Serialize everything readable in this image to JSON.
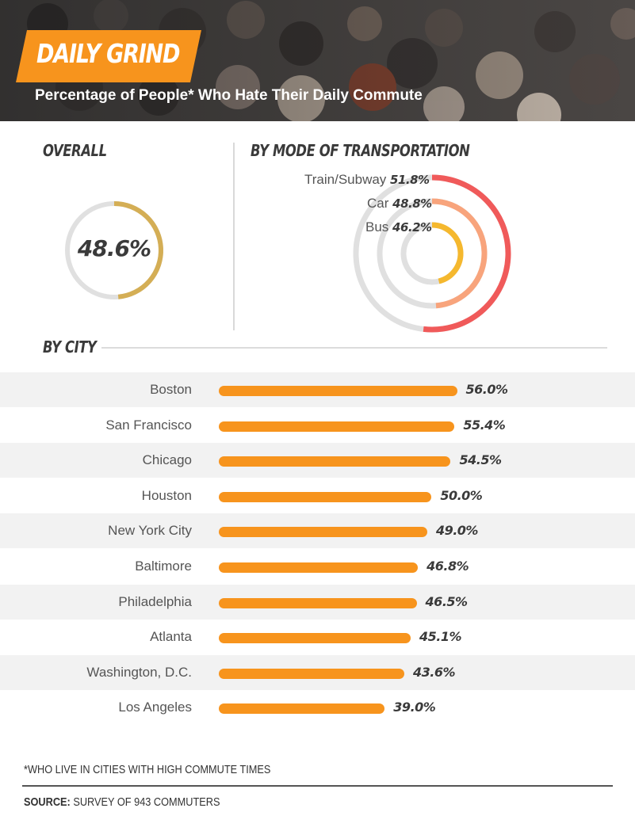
{
  "header": {
    "title": "DAILY GRIND",
    "subtitle": "Percentage of People* Who Hate Their Daily Commute"
  },
  "sections": {
    "overall": "OVERALL",
    "by_mode": "BY MODE OF TRANSPORTATION",
    "by_city": "BY CITY"
  },
  "colors": {
    "overall_ring": "#d4ae55",
    "train": "#f05a5a",
    "car": "#f8a47c",
    "bus": "#f5b82e",
    "track": "#e0e0e0",
    "bar": "#f7941d",
    "title_tag": "#f7941d"
  },
  "chart_data": [
    {
      "type": "pie",
      "title": "OVERALL",
      "values": [
        48.6
      ],
      "value_label": "48.6%",
      "max": 100
    },
    {
      "type": "bar",
      "title": "BY MODE OF TRANSPORTATION",
      "categories": [
        "Train/Subway",
        "Car",
        "Bus"
      ],
      "values": [
        51.8,
        48.8,
        46.2
      ],
      "labels": [
        "51.8%",
        "48.8%",
        "46.2%"
      ],
      "max": 100
    },
    {
      "type": "bar",
      "title": "BY CITY",
      "categories": [
        "Boston",
        "San Francisco",
        "Chicago",
        "Houston",
        "New York City",
        "Baltimore",
        "Philadelphia",
        "Atlanta",
        "Washington, D.C.",
        "Los Angeles"
      ],
      "values": [
        56.0,
        55.4,
        54.5,
        50.0,
        49.0,
        46.8,
        46.5,
        45.1,
        43.6,
        39.0
      ],
      "labels": [
        "56.0%",
        "55.4%",
        "54.5%",
        "50.0%",
        "49.0%",
        "46.8%",
        "46.5%",
        "45.1%",
        "43.6%",
        "39.0%"
      ],
      "xlim": [
        0,
        60
      ]
    }
  ],
  "footer": {
    "footnote": "*WHO LIVE IN CITIES WITH HIGH COMMUTE TIMES",
    "source_label": "SOURCE:",
    "source_text": " SURVEY OF 943 COMMUTERS"
  }
}
